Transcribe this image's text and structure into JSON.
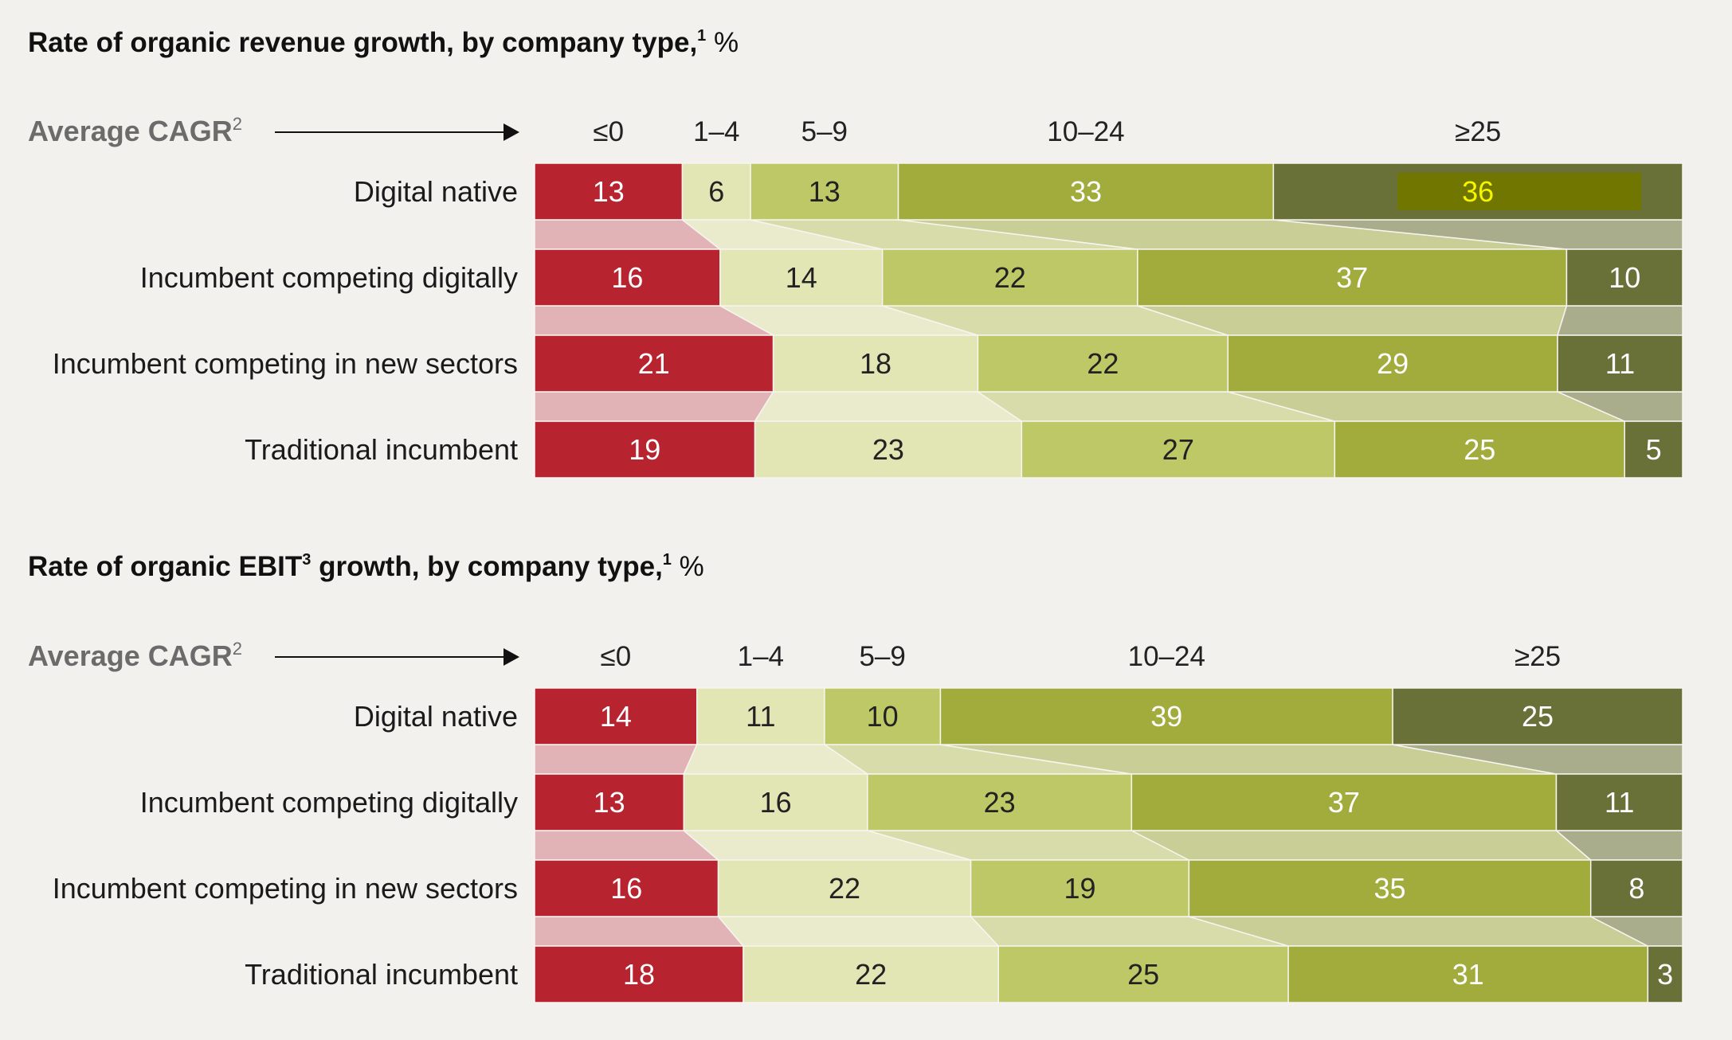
{
  "colors": {
    "background": "#f2f1ee",
    "segments": [
      "#b82330",
      "#e2e5b4",
      "#bfc866",
      "#a1ac3c",
      "#6a7138"
    ],
    "connectors": [
      "#e2b3b6",
      "#eaebcc",
      "#d8dcaa",
      "#c9ce96",
      "#a9ad8c"
    ],
    "segment_text": [
      "#ffffff",
      "#222222",
      "#222222",
      "#ffffff",
      "#ffffff"
    ],
    "highlight_box": "#707600",
    "highlight_text": "#f5f500"
  },
  "chart_data": [
    {
      "type": "bar",
      "stacked": true,
      "orientation": "horizontal",
      "normalized": true,
      "title": "Rate of organic revenue growth, by company type,",
      "title_superscript": "1",
      "title_unit": "%",
      "axis_label": "Average CAGR",
      "axis_label_superscript": "2",
      "categories": [
        "≤0",
        "1–4",
        "5–9",
        "10–24",
        "≥25"
      ],
      "rows": [
        {
          "name": "Digital native",
          "values": [
            13,
            6,
            13,
            33,
            36
          ]
        },
        {
          "name": "Incumbent competing digitally",
          "values": [
            16,
            14,
            22,
            37,
            10
          ]
        },
        {
          "name": "Incumbent competing in new sectors",
          "values": [
            21,
            18,
            22,
            29,
            11
          ]
        },
        {
          "name": "Traditional incumbent",
          "values": [
            19,
            23,
            27,
            25,
            5
          ]
        }
      ],
      "highlight": {
        "row": 0,
        "segment": 4
      }
    },
    {
      "type": "bar",
      "stacked": true,
      "orientation": "horizontal",
      "normalized": true,
      "title": "Rate of organic EBIT",
      "title_superscript_1": "3",
      "title_cont": " growth, by company type,",
      "title_superscript": "1",
      "title_unit": "%",
      "axis_label": "Average CAGR",
      "axis_label_superscript": "2",
      "categories": [
        "≤0",
        "1–4",
        "5–9",
        "10–24",
        "≥25"
      ],
      "rows": [
        {
          "name": "Digital native",
          "values": [
            14,
            11,
            10,
            39,
            25
          ]
        },
        {
          "name": "Incumbent competing digitally",
          "values": [
            13,
            16,
            23,
            37,
            11
          ]
        },
        {
          "name": "Incumbent competing in new sectors",
          "values": [
            16,
            22,
            19,
            35,
            8
          ]
        },
        {
          "name": "Traditional incumbent",
          "values": [
            18,
            22,
            25,
            31,
            3
          ]
        }
      ]
    }
  ]
}
